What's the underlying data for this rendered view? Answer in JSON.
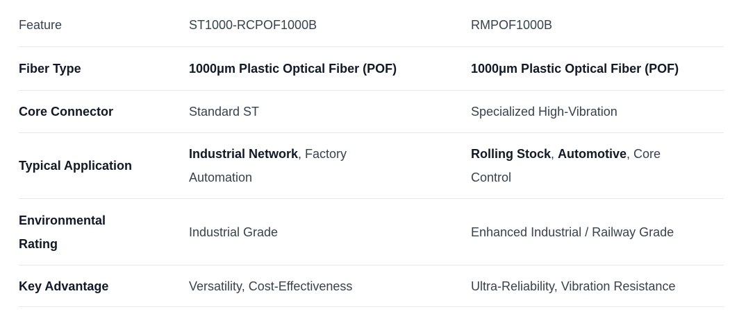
{
  "table": {
    "columns": [
      "Feature",
      "ST1000-RCPOF1000B",
      "RMPOF1000B"
    ],
    "rows": [
      {
        "label": "Fiber Type",
        "st1000": [
          {
            "text": "1000μm Plastic Optical Fiber (POF)",
            "bold": true
          }
        ],
        "rmpof": [
          {
            "text": "1000μm Plastic Optical Fiber (POF)",
            "bold": true
          }
        ]
      },
      {
        "label": "Core Connector",
        "st1000": [
          {
            "text": "Standard ST"
          }
        ],
        "rmpof": [
          {
            "text": "Specialized High-Vibration"
          }
        ]
      },
      {
        "label": "Typical Application",
        "st1000": [
          {
            "text": "Industrial Network",
            "bold": true
          },
          {
            "text": ", Factory Automation"
          }
        ],
        "rmpof": [
          {
            "text": "Rolling Stock",
            "bold": true
          },
          {
            "text": ", "
          },
          {
            "text": "Automotive",
            "bold": true
          },
          {
            "text": ", Core Control"
          }
        ]
      },
      {
        "label": "Environmental Rating",
        "st1000": [
          {
            "text": "Industrial Grade"
          }
        ],
        "rmpof": [
          {
            "text": "Enhanced Industrial / Railway Grade"
          }
        ]
      },
      {
        "label": "Key Advantage",
        "st1000": [
          {
            "text": "Versatility, Cost-Effectiveness"
          }
        ],
        "rmpof": [
          {
            "text": "Ultra-Reliability, Vibration Resistance"
          }
        ]
      }
    ],
    "colors": {
      "text_regular": "#374151",
      "text_bold": "#111827",
      "divider": "#e5e7eb",
      "background": "#ffffff"
    }
  }
}
